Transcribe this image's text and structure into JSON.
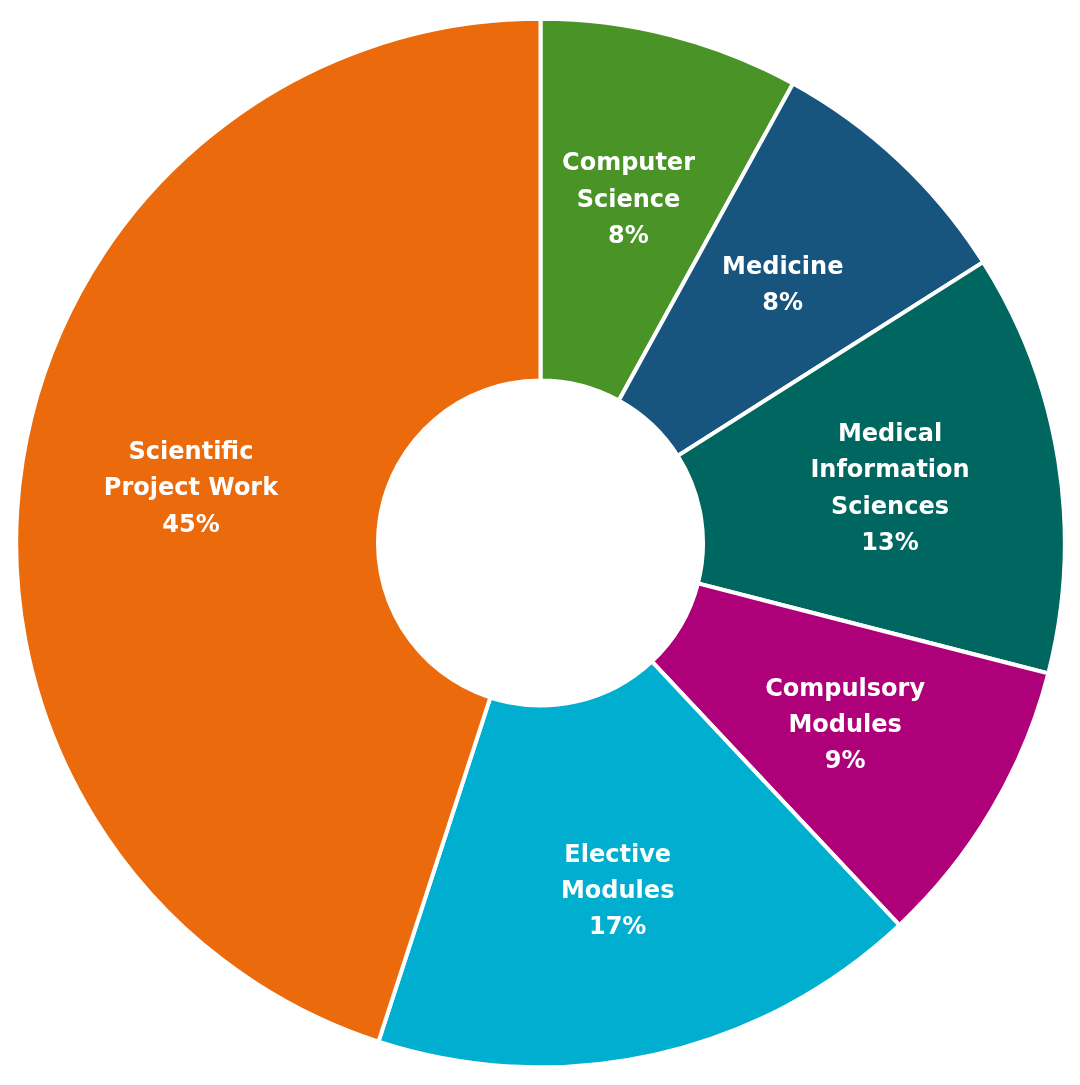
{
  "chart_data": {
    "type": "donut",
    "categories": [
      "Computer Science",
      "Medicine",
      "Medical Information Sciences",
      "Compulsory Modules",
      "Elective Modules",
      "Scientific Project Work"
    ],
    "values": [
      8,
      8,
      13,
      9,
      17,
      45
    ],
    "value_labels": [
      "8%",
      "8%",
      "13%",
      "9%",
      "17%",
      "45%"
    ],
    "colors": [
      "#4a9327",
      "#17557f",
      "#006660",
      "#ae0078",
      "#00aecf",
      "#eb6a0b"
    ]
  }
}
